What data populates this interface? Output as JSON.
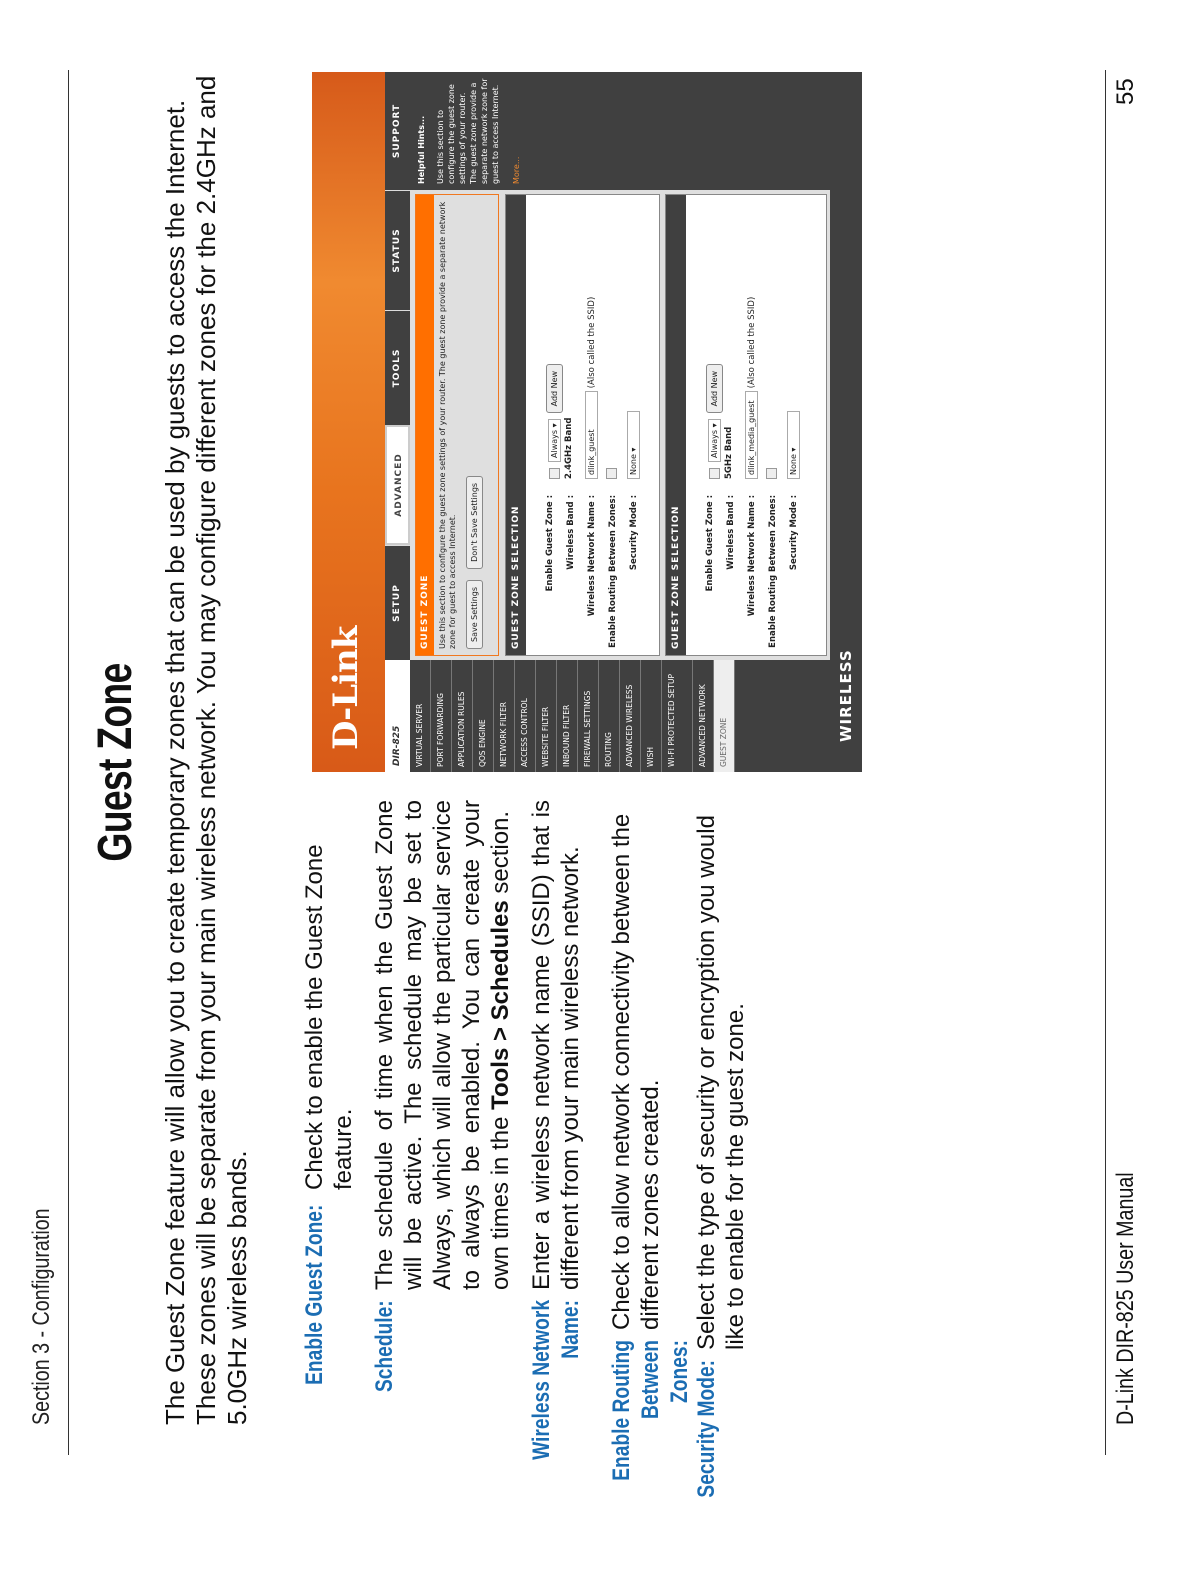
{
  "header": {
    "section": "Section 3 - Configuration"
  },
  "title": "Guest Zone",
  "intro": "The Guest Zone feature will allow you to create temporary zones that can be used by guests to access the Internet. These zones will be separate from your main wireless network. You may configure different zones for the 2.4GHz and 5.0GHz wireless bands.",
  "items": [
    {
      "label": "Enable Guest Zone:",
      "desc": "Check to enable the Guest Zone feature."
    },
    {
      "label": "Schedule:",
      "desc_pre": "The schedule of time when the Guest Zone will be active. The schedule may be set to Always, which will allow the particular service to always be enabled. You can create your own times in the ",
      "desc_bold": "Tools > Schedules",
      "desc_post": " section."
    },
    {
      "label": "Wireless Network Name:",
      "desc": "Enter a wireless network name (SSID) that is different from your main wireless network."
    },
    {
      "label": "Enable Routing Between Zones:",
      "desc": "Check to allow network connectivity between the different zones created."
    },
    {
      "label": "Security Mode:",
      "desc": "Select the type of security or encryption you would like to enable for the guest zone."
    }
  ],
  "screenshot": {
    "logo": "D-Link",
    "model": "DIR-825",
    "tabs": [
      "SETUP",
      "ADVANCED",
      "TOOLS",
      "STATUS",
      "SUPPORT"
    ],
    "active_tab": "ADVANCED",
    "sidebar": [
      "VIRTUAL SERVER",
      "PORT FORWARDING",
      "APPLICATION RULES",
      "QOS ENGINE",
      "NETWORK FILTER",
      "ACCESS CONTROL",
      "WEBSITE FILTER",
      "INBOUND FILTER",
      "FIREWALL SETTINGS",
      "ROUTING",
      "ADVANCED WIRELESS",
      "WISH",
      "WI-FI PROTECTED SETUP",
      "ADVANCED NETWORK",
      "GUEST ZONE"
    ],
    "guest_zone": {
      "heading": "GUEST ZONE",
      "text": "Use this section to configure the guest zone settings of your router. The guest zone provide a separate network zone for guest to access Internet.",
      "save": "Save Settings",
      "dont_save": "Don't Save Settings"
    },
    "labels": {
      "enable": "Enable Guest Zone :",
      "band": "Wireless Band :",
      "name": "Wireless Network Name :",
      "routing": "Enable Routing Between Zones:",
      "security": "Security Mode :",
      "add_new": "Add New",
      "ssid_note": "(Also called the SSID)",
      "section": "GUEST ZONE SELECTION"
    },
    "zones": [
      {
        "schedule": "Always",
        "band": "2.4GHz Band",
        "ssid": "dlink_guest",
        "security": "None"
      },
      {
        "schedule": "Always",
        "band": "5GHz Band",
        "ssid": "dlink_media_guest",
        "security": "None"
      }
    ],
    "hints": {
      "title": "Helpful Hints...",
      "text": "Use this section to configure the guest zone settings of your router. The guest zone provide a separate network zone for guest to access Internet.",
      "more": "More..."
    },
    "footer": "WIRELESS"
  },
  "footer": {
    "manual": "D-Link DIR-825 User Manual",
    "page": "55"
  },
  "colors": {
    "label_blue": "#1b6db3",
    "dlink_orange": "#ff6f00",
    "dark_gray": "#404040"
  }
}
